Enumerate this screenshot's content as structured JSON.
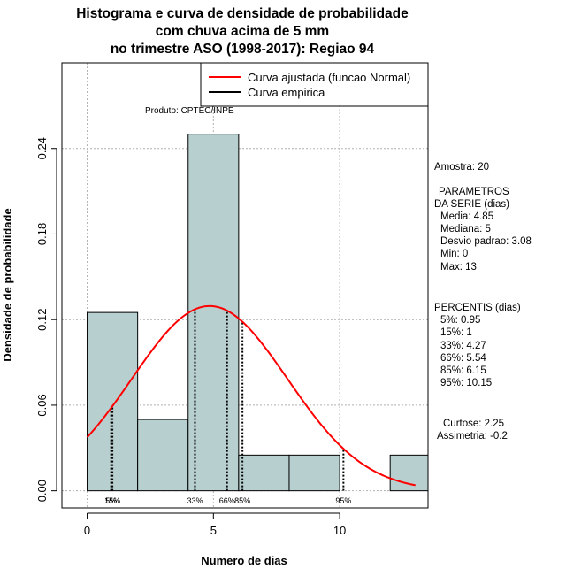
{
  "chart_data": {
    "type": "bar",
    "title_lines": [
      "Histograma e curva de densidade de probabilidade",
      "com chuva acima de 5 mm",
      "no trimestre ASO (1998-2017): Regiao 94"
    ],
    "xlabel": "Numero de dias",
    "ylabel": "Densidade de probabilidade",
    "xlim": [
      -1,
      13.5
    ],
    "ylim": [
      -0.012,
      0.3
    ],
    "x_ticks": [
      "0",
      "5",
      "10"
    ],
    "y_ticks": [
      "0.00",
      "0.06",
      "0.12",
      "0.18",
      "0.24"
    ],
    "x_tick_values": [
      0,
      5,
      10
    ],
    "y_tick_values": [
      0,
      0.06,
      0.12,
      0.18,
      0.24
    ],
    "bins": [
      {
        "start": 0,
        "end": 2,
        "density": 0.125
      },
      {
        "start": 2,
        "end": 4,
        "density": 0.05
      },
      {
        "start": 4,
        "end": 6,
        "density": 0.25
      },
      {
        "start": 6,
        "end": 8,
        "density": 0.025
      },
      {
        "start": 8,
        "end": 10,
        "density": 0.025
      },
      {
        "start": 10,
        "end": 12,
        "density": 0
      },
      {
        "start": 12,
        "end": 14,
        "density": 0.025
      }
    ],
    "normal_fit": {
      "mean": 4.85,
      "sd": 3.08,
      "x_from": 0,
      "x_to": 13
    },
    "percentile_lines": [
      {
        "label": "5%",
        "x": 0.95
      },
      {
        "label": "15%",
        "x": 1
      },
      {
        "label": "33%",
        "x": 4.27
      },
      {
        "label": "66%",
        "x": 5.54
      },
      {
        "label": "85%",
        "x": 6.15
      },
      {
        "label": "95%",
        "x": 10.15
      }
    ],
    "legend": {
      "position": "top-right",
      "items": [
        {
          "label": "Curva ajustada (funcao Normal)",
          "color": "#ff0000"
        },
        {
          "label": "Curva empirica",
          "color": "#000000"
        }
      ]
    },
    "annotation": "Produto: CPTEC/INPE",
    "grid": true,
    "colors": {
      "bar_fill": "#b8cfcf",
      "curve": "#ff0000",
      "grid": "#b0b0b0"
    }
  },
  "stats": {
    "amostra": "Amostra: 20",
    "param_title_1": "PARAMETROS",
    "param_title_2": "DA SERIE (dias)",
    "media": "Media: 4.85",
    "mediana": "Mediana: 5",
    "desvio": "Desvio padrao: 3.08",
    "min": "Min: 0",
    "max": "Max: 13",
    "perc_title": "PERCENTIS (dias)",
    "p5": "5%: 0.95",
    "p15": "15%: 1",
    "p33": "33%: 4.27",
    "p66": "66%: 5.54",
    "p85": "85%: 6.15",
    "p95": "95%: 10.15",
    "curtose": "Curtose: 2.25",
    "assimetria": "Assimetria: -0.2"
  }
}
